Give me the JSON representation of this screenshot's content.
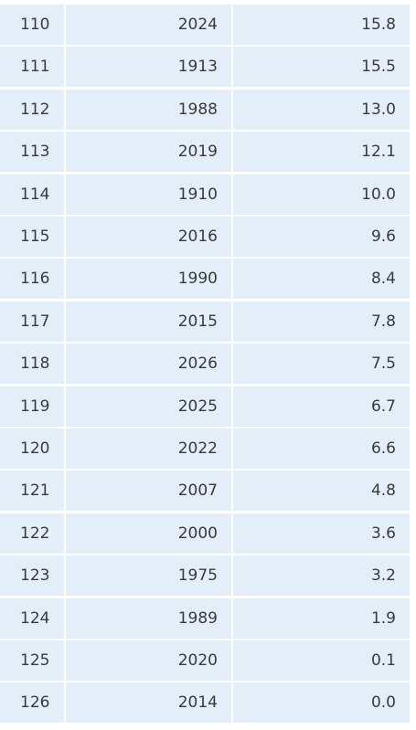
{
  "table": {
    "rows": [
      [
        "110",
        "2024",
        "15.8"
      ],
      [
        "111",
        "1913",
        "15.5"
      ],
      [
        "112",
        "1988",
        "13.0"
      ],
      [
        "113",
        "2019",
        "12.1"
      ],
      [
        "114",
        "1910",
        "10.0"
      ],
      [
        "115",
        "2016",
        "9.6"
      ],
      [
        "116",
        "1990",
        "8.4"
      ],
      [
        "117",
        "2015",
        "7.8"
      ],
      [
        "118",
        "2026",
        "7.5"
      ],
      [
        "119",
        "2025",
        "6.7"
      ],
      [
        "120",
        "2022",
        "6.6"
      ],
      [
        "121",
        "2007",
        "4.8"
      ],
      [
        "122",
        "2000",
        "3.6"
      ],
      [
        "123",
        "1975",
        "3.2"
      ],
      [
        "124",
        "1989",
        "1.9"
      ],
      [
        "125",
        "2020",
        "0.1"
      ],
      [
        "126",
        "2014",
        "0.0"
      ]
    ]
  }
}
